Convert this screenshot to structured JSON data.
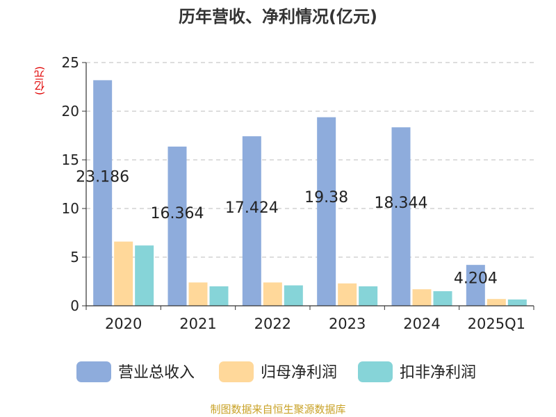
{
  "title": "历年营收、净利情况(亿元)",
  "unit_label": "(亿元)",
  "source_note": "制图数据来自恒生聚源数据库",
  "colors": {
    "revenue": "#8EACDC",
    "net_profit": "#FFD89A",
    "deducted_net_profit": "#86D4D8",
    "axis": "#333333",
    "grid": "#bbbbbb",
    "text": "#222222"
  },
  "chart_data": {
    "type": "bar",
    "categories": [
      "2020",
      "2021",
      "2022",
      "2023",
      "2024",
      "2025Q1"
    ],
    "series": [
      {
        "name": "营业总收入",
        "values": [
          23.186,
          16.364,
          17.424,
          19.38,
          18.344,
          4.204
        ],
        "show_labels": true
      },
      {
        "name": "归母净利润",
        "values": [
          6.6,
          2.4,
          2.4,
          2.3,
          1.7,
          0.7
        ]
      },
      {
        "name": "扣非净利润",
        "values": [
          6.2,
          2.0,
          2.1,
          2.0,
          1.5,
          0.65
        ]
      }
    ],
    "data_labels": [
      "23.186",
      "16.364",
      "17.424",
      "19.38",
      "18.344",
      "4.204"
    ],
    "ylim": [
      0,
      25
    ],
    "yticks": [
      0,
      5,
      10,
      15,
      20,
      25
    ],
    "grid": true,
    "legend_position": "bottom"
  }
}
